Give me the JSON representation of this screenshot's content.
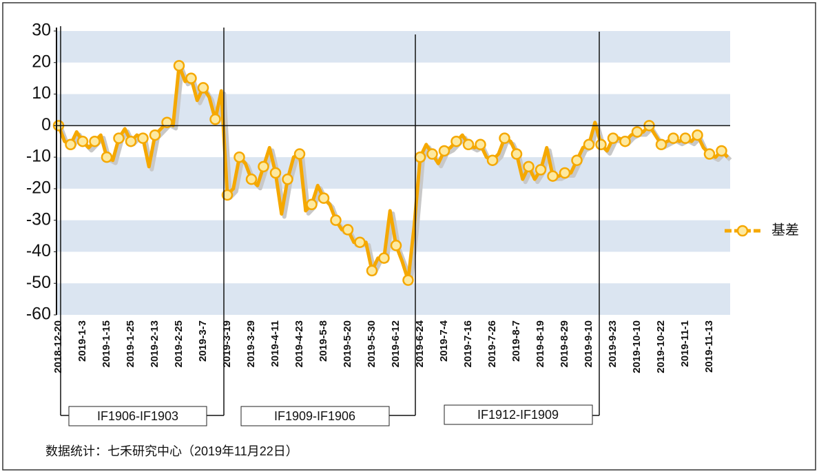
{
  "chart_data": {
    "type": "line",
    "series": [
      {
        "name": "基差",
        "color": "#f5a800",
        "values": [
          0,
          -5,
          -6,
          -2,
          -5,
          -7,
          -5,
          -3,
          -10,
          -11,
          -4,
          -1,
          -5,
          -3,
          -4,
          -13,
          -3,
          -1,
          1,
          0,
          19,
          14,
          15,
          8,
          12,
          9,
          2,
          11,
          -22,
          -20,
          -10,
          -12,
          -17,
          -19,
          -13,
          -7,
          -15,
          -28,
          -17,
          -10,
          -9,
          -27,
          -25,
          -19,
          -23,
          -25,
          -30,
          -33,
          -33,
          -37,
          -37,
          -37,
          -46,
          -42,
          -42,
          -27,
          -38,
          -43,
          -49,
          -32,
          -10,
          -6,
          -9,
          -12,
          -8,
          -7,
          -5,
          -3,
          -6,
          -7,
          -6,
          -10,
          -11,
          -9,
          -4,
          -5,
          -9,
          -17,
          -13,
          -17,
          -14,
          -7,
          -16,
          -16,
          -15,
          -15,
          -11,
          -7,
          -6,
          1,
          -6,
          -8,
          -4,
          -4,
          -5,
          -3,
          -2,
          -2,
          0,
          -3,
          -6,
          -5,
          -4,
          -5,
          -4,
          -5,
          -3,
          -7,
          -9,
          -10,
          -8,
          -10
        ]
      }
    ],
    "categories": [
      "2018-12-20",
      null,
      null,
      null,
      "2019-1-3",
      null,
      null,
      null,
      "2019-1-15",
      null,
      null,
      null,
      "2019-1-25",
      null,
      null,
      null,
      "2019-2-13",
      null,
      null,
      null,
      "2019-2-25",
      null,
      null,
      null,
      "2019-3-7",
      null,
      null,
      null,
      "2019-3-19",
      null,
      null,
      null,
      "2019-3-29",
      null,
      null,
      null,
      "2019-4-11",
      null,
      null,
      null,
      "2019-4-23",
      null,
      null,
      null,
      "2019-5-8",
      null,
      null,
      null,
      "2019-5-20",
      null,
      null,
      null,
      "2019-5-30",
      null,
      null,
      null,
      "2019-6-12",
      null,
      null,
      null,
      "2019-6-24",
      null,
      null,
      null,
      "2019-7-4",
      null,
      null,
      null,
      "2019-7-16",
      null,
      null,
      null,
      "2019-7-26",
      null,
      null,
      null,
      "2019-8-7",
      null,
      null,
      null,
      "2019-8-19",
      null,
      null,
      null,
      "2019-8-29",
      null,
      null,
      null,
      "2019-9-10",
      null,
      null,
      null,
      "2019-9-23",
      null,
      null,
      null,
      "2019-10-10",
      null,
      null,
      null,
      "2019-10-22",
      null,
      null,
      null,
      "2019-11-1",
      null,
      null,
      null,
      "2019-11-13",
      null,
      null,
      null
    ],
    "ylim": [
      -60,
      30
    ],
    "yticks": [
      -60,
      -50,
      -40,
      -30,
      -20,
      -10,
      0,
      10,
      20,
      30
    ],
    "bands": true,
    "legend": "right",
    "annotations": [
      "IF1906-IF1903",
      "IF1909-IF1906",
      "IF1912-IF1909"
    ],
    "source": "数据统计：七禾研究中心（2019年11月22日）"
  }
}
